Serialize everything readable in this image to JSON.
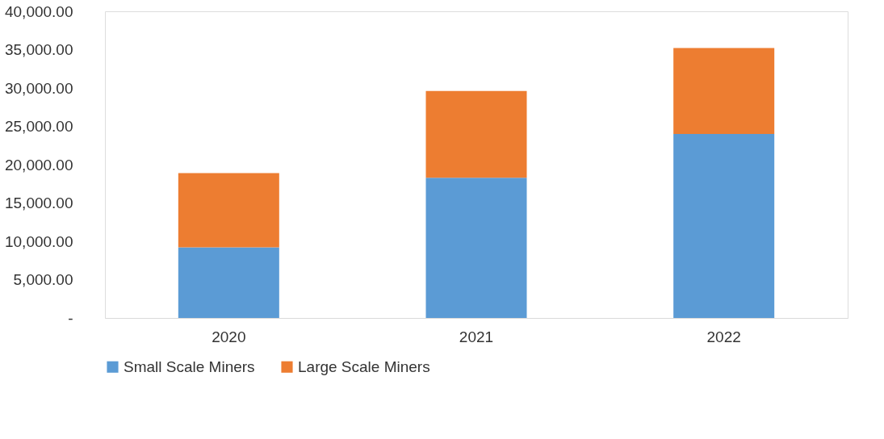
{
  "chart_data": {
    "type": "bar",
    "stacked": true,
    "categories": [
      "2020",
      "2021",
      "2022"
    ],
    "series": [
      {
        "name": "Small Scale Miners",
        "color": "#5b9bd5",
        "values": [
          9200,
          18300,
          24000
        ]
      },
      {
        "name": "Large Scale Miners",
        "color": "#ed7d31",
        "values": [
          9700,
          11300,
          11200
        ]
      }
    ],
    "ylim": [
      0,
      40000
    ],
    "yticks": [
      {
        "value": 0,
        "label": "-"
      },
      {
        "value": 5000,
        "label": "5,000.00"
      },
      {
        "value": 10000,
        "label": "10,000.00"
      },
      {
        "value": 15000,
        "label": "15,000.00"
      },
      {
        "value": 20000,
        "label": "20,000.00"
      },
      {
        "value": 25000,
        "label": "25,000.00"
      },
      {
        "value": 30000,
        "label": "30,000.00"
      },
      {
        "value": 35000,
        "label": "35,000.00"
      },
      {
        "value": 40000,
        "label": "40,000.00"
      }
    ],
    "grid": false,
    "legend": "bottom"
  }
}
